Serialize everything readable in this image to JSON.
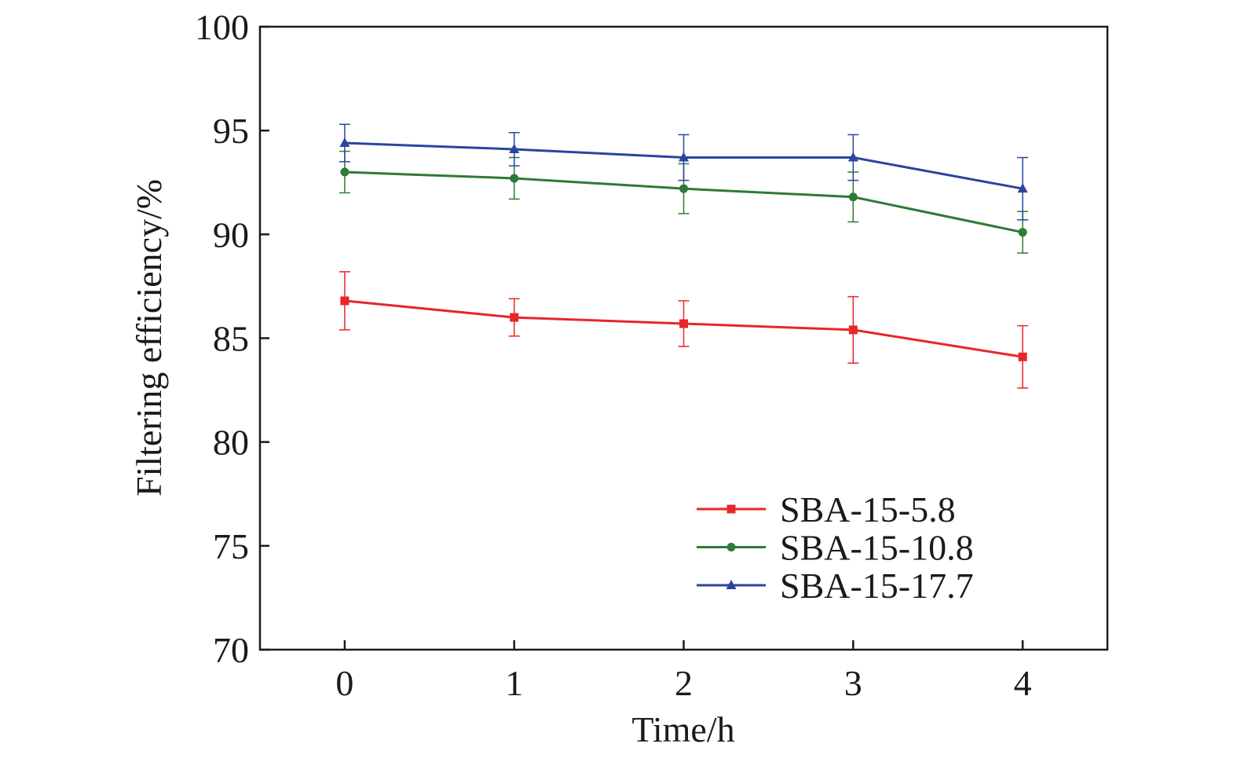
{
  "chart_data": {
    "type": "line",
    "title": "",
    "xlabel": "Time/h",
    "ylabel": "Filtering efficiency/%",
    "x": [
      0,
      1,
      2,
      3,
      4
    ],
    "xlim": [
      -0.5,
      4.5
    ],
    "ylim": [
      70,
      100
    ],
    "xticks": [
      0,
      1,
      2,
      3,
      4
    ],
    "yticks": [
      70,
      75,
      80,
      85,
      90,
      95,
      100
    ],
    "grid": false,
    "legend_position": "bottom-right",
    "series": [
      {
        "name": "SBA-15-5.8",
        "color": "#e8262a",
        "marker": "square",
        "values": [
          86.8,
          86.0,
          85.7,
          85.4,
          84.1
        ],
        "error": [
          1.4,
          0.9,
          1.1,
          1.6,
          1.5
        ]
      },
      {
        "name": "SBA-15-10.8",
        "color": "#2f7a35",
        "marker": "circle",
        "values": [
          93.0,
          92.7,
          92.2,
          91.8,
          90.1
        ],
        "error": [
          1.0,
          1.0,
          1.2,
          1.2,
          1.0
        ]
      },
      {
        "name": "SBA-15-17.7",
        "color": "#2a45a0",
        "marker": "triangle",
        "values": [
          94.4,
          94.1,
          93.7,
          93.7,
          92.2
        ],
        "error": [
          0.9,
          0.8,
          1.1,
          1.1,
          1.5
        ]
      }
    ]
  }
}
